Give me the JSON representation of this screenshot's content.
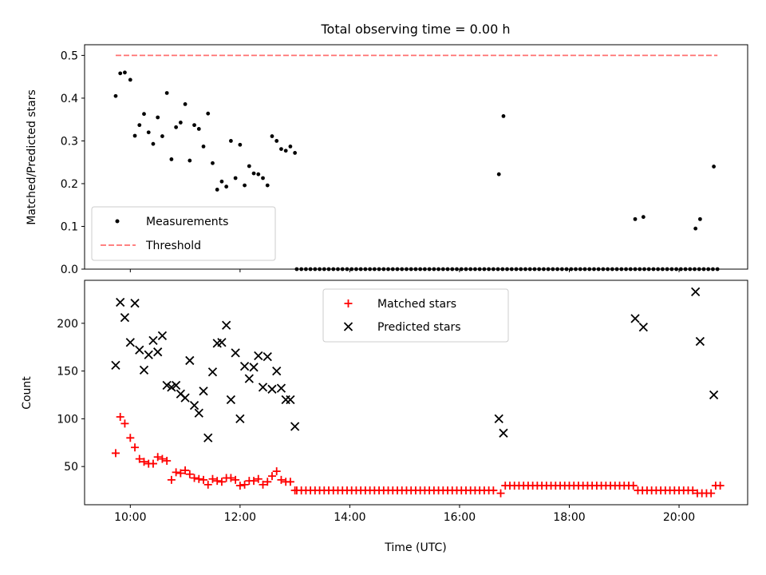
{
  "chart_data": [
    {
      "type": "scatter",
      "title": "Total observing time = 0.00 h",
      "ylabel": "Matched/Predicted stars",
      "xlabel": "",
      "x_axis": "time",
      "xlim": [
        "09:10",
        "21:15"
      ],
      "ylim": [
        0,
        0.525
      ],
      "yticks": [
        0.0,
        0.1,
        0.2,
        0.3,
        0.4,
        0.5
      ],
      "legend_placement": "lower-left",
      "series": [
        {
          "name": "Measurements",
          "marker": "dot",
          "color": "#000000",
          "x": [
            "09:44",
            "09:49",
            "09:54",
            "10:00",
            "10:05",
            "10:10",
            "10:15",
            "10:20",
            "10:25",
            "10:30",
            "10:35",
            "10:40",
            "10:45",
            "10:50",
            "10:55",
            "11:00",
            "11:05",
            "11:10",
            "11:15",
            "11:20",
            "11:25",
            "11:30",
            "11:35",
            "11:40",
            "11:45",
            "11:50",
            "11:55",
            "12:00",
            "12:05",
            "12:10",
            "12:15",
            "12:20",
            "12:25",
            "12:30",
            "12:35",
            "12:40",
            "12:45",
            "12:50",
            "12:55",
            "13:00",
            "16:43",
            "16:48",
            "20:18",
            "20:23",
            "20:38",
            "19:12",
            "19:21"
          ],
          "y": [
            0.405,
            0.458,
            0.46,
            0.443,
            0.312,
            0.337,
            0.363,
            0.32,
            0.293,
            0.355,
            0.311,
            0.412,
            0.257,
            0.332,
            0.343,
            0.386,
            0.254,
            0.337,
            0.328,
            0.287,
            0.364,
            0.248,
            0.186,
            0.205,
            0.193,
            0.3,
            0.213,
            0.291,
            0.196,
            0.241,
            0.224,
            0.222,
            0.213,
            0.196,
            0.311,
            0.3,
            0.281,
            0.277,
            0.287,
            0.272,
            0.222,
            0.358,
            0.095,
            0.117,
            0.24,
            0.117,
            0.122
          ]
        },
        {
          "name": "",
          "marker": "dot",
          "color": "#000000",
          "x_start": "13:02",
          "x_end": "20:42",
          "step_min": 5,
          "y": 0.0
        },
        {
          "name": "Threshold",
          "type": "line",
          "style": "dashed",
          "color": "#ff7070",
          "x": [
            "09:44",
            "20:42"
          ],
          "y": [
            0.5,
            0.5
          ]
        }
      ]
    },
    {
      "type": "scatter",
      "title": "",
      "ylabel": "Count",
      "xlabel": "Time (UTC)",
      "x_axis": "time",
      "xlim": [
        "09:10",
        "21:15"
      ],
      "ylim": [
        10,
        245
      ],
      "yticks": [
        50,
        100,
        150,
        200
      ],
      "xticks": [
        "10:00",
        "12:00",
        "14:00",
        "16:00",
        "18:00",
        "20:00"
      ],
      "legend_placement": "top-center",
      "series": [
        {
          "name": "Matched stars",
          "marker": "plus",
          "color": "#ff0000",
          "x": [
            "09:44",
            "09:49",
            "09:54",
            "10:00",
            "10:05",
            "10:10",
            "10:15",
            "10:20",
            "10:25",
            "10:30",
            "10:35",
            "10:40",
            "10:45",
            "10:50",
            "10:55",
            "11:00",
            "11:05",
            "11:10",
            "11:15",
            "11:20",
            "11:25",
            "11:30",
            "11:35",
            "11:40",
            "11:45",
            "11:50",
            "11:55",
            "12:00",
            "12:05",
            "12:10",
            "12:15",
            "12:20",
            "12:25",
            "12:30",
            "12:35",
            "12:40",
            "12:45",
            "12:50",
            "12:55",
            "13:00"
          ],
          "y": [
            64,
            102,
            95,
            80,
            70,
            58,
            55,
            53,
            53,
            60,
            58,
            56,
            36,
            44,
            43,
            46,
            42,
            38,
            37,
            36,
            31,
            37,
            35,
            34,
            38,
            38,
            36,
            30,
            31,
            35,
            35,
            37,
            31,
            34,
            40,
            45,
            36,
            34,
            34,
            25
          ]
        },
        {
          "name": "",
          "marker": "plus",
          "color": "#ff0000",
          "segments": [
            {
              "x_start": "13:02",
              "x_end": "16:40",
              "step_min": 5,
              "y": 25
            },
            {
              "x_start": "16:45",
              "x_end": "16:45",
              "step_min": 5,
              "y": 22
            },
            {
              "x_start": "16:50",
              "x_end": "19:10",
              "step_min": 5,
              "y": 30
            },
            {
              "x_start": "19:15",
              "x_end": "20:15",
              "step_min": 5,
              "y": 25
            },
            {
              "x_start": "20:20",
              "x_end": "20:35",
              "step_min": 5,
              "y": 22
            },
            {
              "x_start": "20:40",
              "x_end": "20:45",
              "step_min": 5,
              "y": 30
            }
          ]
        },
        {
          "name": "Predicted stars",
          "marker": "x",
          "color": "#000000",
          "x": [
            "09:44",
            "09:49",
            "09:54",
            "10:00",
            "10:05",
            "10:10",
            "10:15",
            "10:20",
            "10:25",
            "10:30",
            "10:35",
            "10:40",
            "10:45",
            "10:50",
            "10:55",
            "11:00",
            "11:05",
            "11:10",
            "11:15",
            "11:20",
            "11:25",
            "11:30",
            "11:35",
            "11:40",
            "11:45",
            "11:50",
            "11:55",
            "12:00",
            "12:05",
            "12:10",
            "12:15",
            "12:20",
            "12:25",
            "12:30",
            "12:35",
            "12:40",
            "12:45",
            "12:50",
            "12:55",
            "13:00",
            "16:43",
            "16:48",
            "19:12",
            "19:21",
            "20:18",
            "20:23",
            "20:38"
          ],
          "y": [
            156,
            222,
            206,
            180,
            221,
            172,
            151,
            167,
            182,
            170,
            187,
            135,
            133,
            135,
            126,
            122,
            161,
            114,
            106,
            129,
            80,
            149,
            179,
            180,
            198,
            120,
            169,
            100,
            155,
            142,
            154,
            166,
            133,
            165,
            131,
            150,
            132,
            120,
            120,
            92,
            100,
            85,
            205,
            196,
            233,
            181,
            125
          ]
        }
      ]
    }
  ]
}
